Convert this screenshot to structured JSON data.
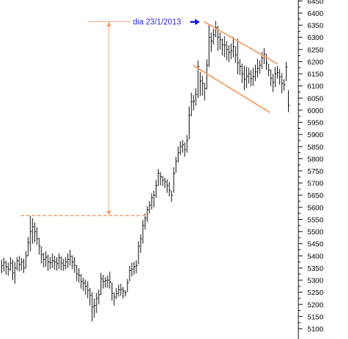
{
  "chart_data": {
    "type": "ohlc",
    "title": "",
    "xlabel": "",
    "ylabel": "",
    "ylim": [
      5100,
      6460
    ],
    "y_ticks": [
      5100,
      5150,
      5200,
      5250,
      5300,
      5350,
      5400,
      5450,
      5500,
      5550,
      5600,
      5650,
      5700,
      5750,
      5800,
      5850,
      5900,
      5950,
      6000,
      6050,
      6100,
      6150,
      6200,
      6250,
      6300,
      6350,
      6400,
      6450
    ],
    "y_axis_side": "right",
    "grid": false,
    "legend": "none",
    "bar_color": "#000000",
    "bars": [
      [
        5383,
        5328,
        5360
      ],
      [
        5392,
        5335,
        5372
      ],
      [
        5380,
        5322,
        5355
      ],
      [
        5372,
        5318,
        5345
      ],
      [
        5395,
        5338,
        5370
      ],
      [
        5385,
        5300,
        5330
      ],
      [
        5375,
        5285,
        5350
      ],
      [
        5395,
        5340,
        5380
      ],
      [
        5400,
        5335,
        5365
      ],
      [
        5392,
        5340,
        5375
      ],
      [
        5388,
        5330,
        5350
      ],
      [
        5420,
        5348,
        5400
      ],
      [
        5478,
        5398,
        5455
      ],
      [
        5565,
        5418,
        5500
      ],
      [
        5555,
        5450,
        5520
      ],
      [
        5538,
        5455,
        5500
      ],
      [
        5518,
        5445,
        5470
      ],
      [
        5475,
        5405,
        5440
      ],
      [
        5438,
        5368,
        5405
      ],
      [
        5412,
        5352,
        5385
      ],
      [
        5418,
        5355,
        5395
      ],
      [
        5405,
        5338,
        5375
      ],
      [
        5395,
        5345,
        5372
      ],
      [
        5410,
        5350,
        5380
      ],
      [
        5400,
        5342,
        5375
      ],
      [
        5395,
        5340,
        5368
      ],
      [
        5410,
        5345,
        5392
      ],
      [
        5398,
        5340,
        5370
      ],
      [
        5388,
        5338,
        5360
      ],
      [
        5395,
        5345,
        5375
      ],
      [
        5410,
        5350,
        5385
      ],
      [
        5425,
        5360,
        5398
      ],
      [
        5402,
        5345,
        5375
      ],
      [
        5395,
        5330,
        5360
      ],
      [
        5362,
        5295,
        5325
      ],
      [
        5350,
        5290,
        5320
      ],
      [
        5325,
        5265,
        5295
      ],
      [
        5310,
        5255,
        5288
      ],
      [
        5302,
        5240,
        5275
      ],
      [
        5295,
        5225,
        5258
      ],
      [
        5268,
        5195,
        5238
      ],
      [
        5250,
        5130,
        5190
      ],
      [
        5225,
        5145,
        5195
      ],
      [
        5248,
        5165,
        5225
      ],
      [
        5262,
        5200,
        5240
      ],
      [
        5330,
        5238,
        5305
      ],
      [
        5322,
        5265,
        5295
      ],
      [
        5312,
        5270,
        5298
      ],
      [
        5320,
        5268,
        5300
      ],
      [
        5335,
        5265,
        5292
      ],
      [
        5290,
        5215,
        5245
      ],
      [
        5250,
        5195,
        5230
      ],
      [
        5268,
        5222,
        5245
      ],
      [
        5282,
        5232,
        5260
      ],
      [
        5285,
        5235,
        5262
      ],
      [
        5272,
        5225,
        5255
      ],
      [
        5258,
        5232,
        5248
      ],
      [
        5305,
        5250,
        5290
      ],
      [
        5358,
        5295,
        5340
      ],
      [
        5372,
        5315,
        5345
      ],
      [
        5375,
        5322,
        5355
      ],
      [
        5382,
        5328,
        5360
      ],
      [
        5460,
        5365,
        5440
      ],
      [
        5488,
        5412,
        5470
      ],
      [
        5548,
        5450,
        5525
      ],
      [
        5575,
        5508,
        5555
      ],
      [
        5605,
        5540,
        5590
      ],
      [
        5625,
        5575,
        5608
      ],
      [
        5658,
        5590,
        5640
      ],
      [
        5668,
        5600,
        5650
      ],
      [
        5712,
        5640,
        5690
      ],
      [
        5758,
        5688,
        5740
      ],
      [
        5745,
        5690,
        5725
      ],
      [
        5730,
        5688,
        5712
      ],
      [
        5722,
        5680,
        5705
      ],
      [
        5715,
        5660,
        5690
      ],
      [
        5705,
        5645,
        5670
      ],
      [
        5668,
        5622,
        5650
      ],
      [
        5765,
        5660,
        5740
      ],
      [
        5808,
        5742,
        5790
      ],
      [
        5850,
        5785,
        5825
      ],
      [
        5872,
        5815,
        5850
      ],
      [
        5878,
        5825,
        5858
      ],
      [
        5868,
        5808,
        5838
      ],
      [
        5898,
        5825,
        5875
      ],
      [
        6015,
        5880,
        5980
      ],
      [
        6072,
        5975,
        6035
      ],
      [
        6062,
        5998,
        6038
      ],
      [
        6090,
        6018,
        6065
      ],
      [
        6205,
        6050,
        6180
      ],
      [
        6158,
        6058,
        6120
      ],
      [
        6142,
        6060,
        6110
      ],
      [
        6112,
        6040,
        6090
      ],
      [
        6210,
        6085,
        6185
      ],
      [
        6352,
        6178,
        6300
      ],
      [
        6320,
        6240,
        6285
      ],
      [
        6335,
        6270,
        6310
      ],
      [
        6368,
        6300,
        6340
      ],
      [
        6348,
        6245,
        6300
      ],
      [
        6320,
        6250,
        6290
      ],
      [
        6295,
        6225,
        6270
      ],
      [
        6305,
        6218,
        6268
      ],
      [
        6285,
        6205,
        6250
      ],
      [
        6268,
        6198,
        6238
      ],
      [
        6275,
        6210,
        6245
      ],
      [
        6302,
        6218,
        6262
      ],
      [
        6262,
        6195,
        6228
      ],
      [
        6295,
        6148,
        6195
      ],
      [
        6210,
        6145,
        6180
      ],
      [
        6192,
        6112,
        6150
      ],
      [
        6182,
        6082,
        6128
      ],
      [
        6180,
        6092,
        6140
      ],
      [
        6175,
        6110,
        6150
      ],
      [
        6165,
        6098,
        6130
      ],
      [
        6175,
        6100,
        6138
      ],
      [
        6188,
        6120,
        6158
      ],
      [
        6212,
        6135,
        6172
      ],
      [
        6205,
        6150,
        6185
      ],
      [
        6240,
        6170,
        6215
      ],
      [
        6255,
        6190,
        6230
      ],
      [
        6232,
        6165,
        6195
      ],
      [
        6190,
        6140,
        6165
      ],
      [
        6168,
        6100,
        6132
      ],
      [
        6150,
        6075,
        6115
      ],
      [
        6178,
        6095,
        6150
      ],
      [
        6182,
        6130,
        6155
      ],
      [
        6170,
        6105,
        6138
      ],
      [
        6152,
        6070,
        6110
      ],
      [
        6128,
        6080,
        6105
      ],
      [
        6198,
        6120,
        6178
      ],
      [
        6082,
        5992,
        6020
      ]
    ],
    "annotations": [
      {
        "type": "label",
        "text": "dia 23/1/2013",
        "color": "#1f1fe8"
      },
      {
        "type": "arrow",
        "direction": "right",
        "color": "#1414e0"
      },
      {
        "type": "hline",
        "style": "dashed",
        "y": 5566,
        "color": "#f5a26c"
      },
      {
        "type": "vline",
        "style": "double-arrow",
        "y_from": 5566,
        "y_to": 6365,
        "color": "#f5a26c"
      },
      {
        "type": "hline",
        "style": "solid",
        "y": 6365,
        "color": "#f5a26c"
      },
      {
        "type": "trendline",
        "role": "upper-channel",
        "from": [
          6370,
          6365
        ],
        "to": [
          6530,
          6190
        ],
        "color": "#f5a26c"
      },
      {
        "type": "trendline",
        "role": "lower-channel",
        "from": [
          6370,
          6185
        ],
        "to": [
          6530,
          5990
        ],
        "color": "#f5a26c"
      }
    ]
  }
}
